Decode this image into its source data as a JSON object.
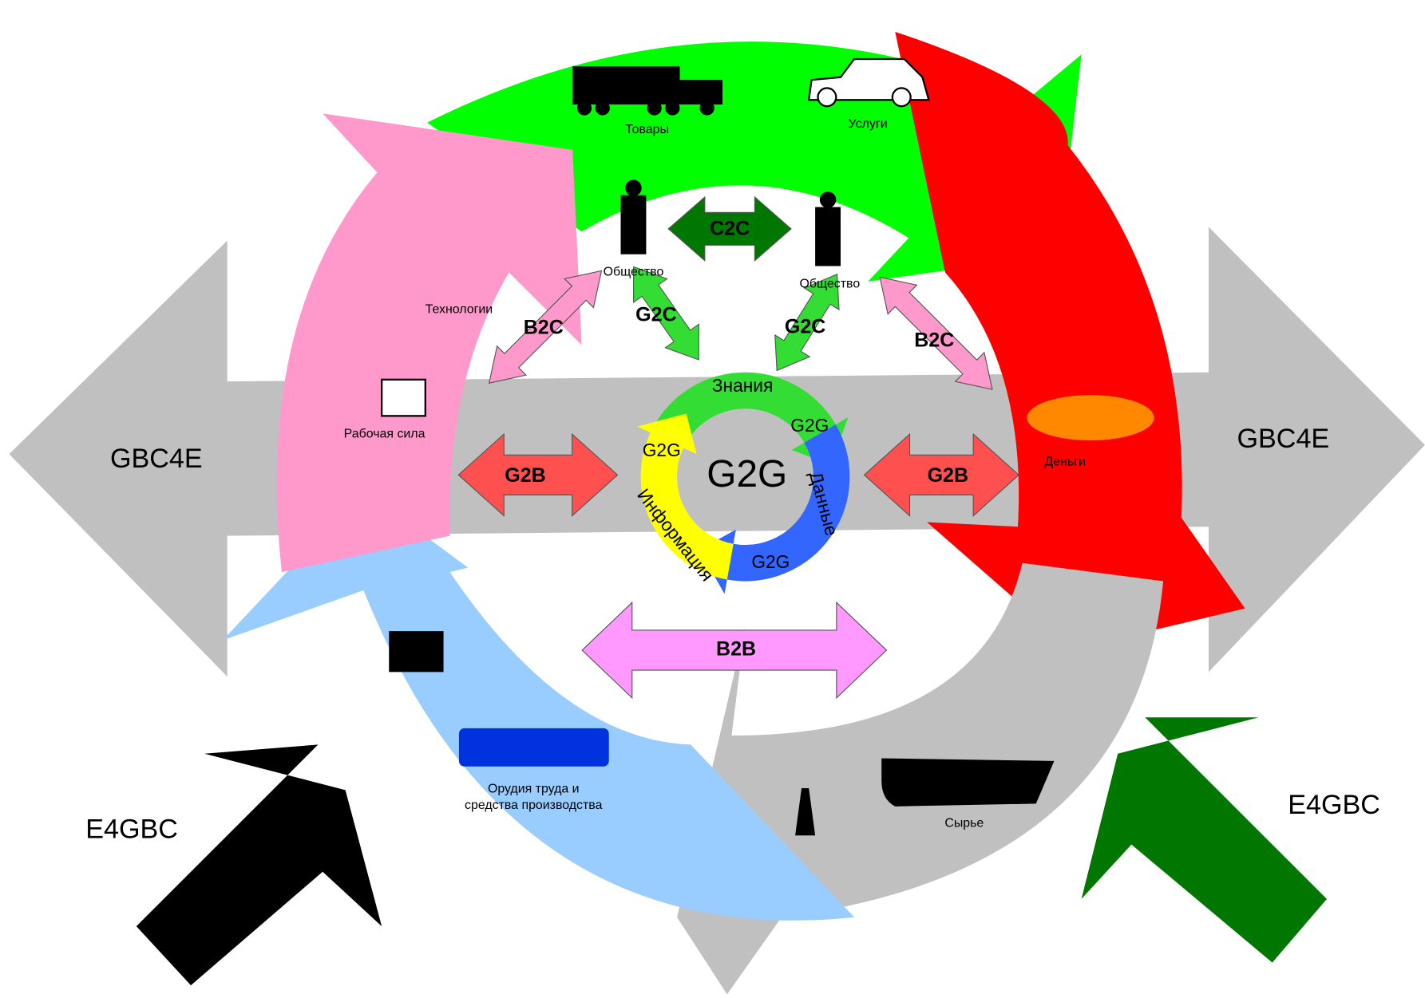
{
  "outer_ring": {
    "goods": "Товары",
    "services": "Услуги",
    "money": "Деньги",
    "raw_materials": "Сырье",
    "tools": [
      "Орудия труда и",
      "средства производства"
    ],
    "technologies": "Технологии",
    "labor": "Рабочая сила"
  },
  "society": [
    "Общество",
    "Общество"
  ],
  "relations": {
    "c2c": "C2C",
    "g2c": [
      "G2C",
      "G2C"
    ],
    "b2c": [
      "B2C",
      "B2C"
    ],
    "g2b": [
      "G2B",
      "G2B"
    ],
    "b2b": "B2B"
  },
  "center": {
    "title": "G2G",
    "cycle": [
      "G2G",
      "G2G",
      "G2G"
    ],
    "knowledge": "Знания",
    "data": "Данные",
    "information": "Информация"
  },
  "external": {
    "gbc4e": [
      "GBC4E",
      "GBC4E"
    ],
    "e4gbc": [
      "E4GBC",
      "E4GBC"
    ]
  }
}
